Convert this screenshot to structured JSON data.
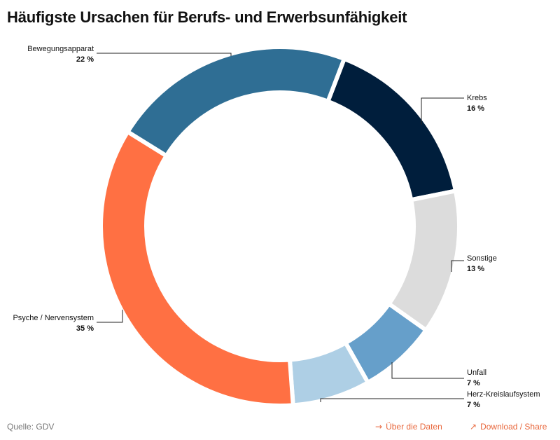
{
  "title": "Häufigste Ursachen für Berufs- und Erwerbsunfähigkeit",
  "chart_data": {
    "type": "pie",
    "variant": "donut",
    "slices": [
      {
        "label": "Krebs",
        "value": 16,
        "value_label": "16 %",
        "color": "#001e3c"
      },
      {
        "label": "Sonstige",
        "value": 13,
        "value_label": "13 %",
        "color": "#dcdcdc"
      },
      {
        "label": "Unfall",
        "value": 7,
        "value_label": "7 %",
        "color": "#669fca"
      },
      {
        "label": "Herz-Kreislaufsystem",
        "value": 7,
        "value_label": "7 %",
        "color": "#aecfe5"
      },
      {
        "label": "Psyche / Nervensystem",
        "value": 35,
        "value_label": "35 %",
        "color": "#ff7043"
      },
      {
        "label": "Bewegungsapparat",
        "value": 22,
        "value_label": "22 %",
        "color": "#2f6e94"
      }
    ]
  },
  "footer": {
    "source": "Quelle: GDV",
    "data_link": "Über die Daten",
    "share_link": "Download / Share"
  },
  "icons": {
    "data_link_icon": "arrow-right-icon",
    "share_link_icon": "arrow-up-right-icon"
  }
}
